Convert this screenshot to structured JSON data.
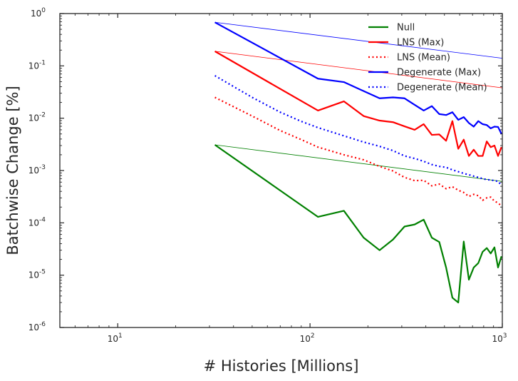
{
  "chart_data": {
    "type": "line",
    "xlabel": "# Histories [Millions]",
    "ylabel": "Batchwise Change [%]",
    "xscale": "log",
    "yscale": "log",
    "xlim": [
      5,
      1000
    ],
    "ylim": [
      1e-06,
      1
    ],
    "xticks": [
      {
        "base": "10",
        "exp": "1",
        "value": 10
      },
      {
        "base": "10",
        "exp": "2",
        "value": 100
      },
      {
        "base": "10",
        "exp": "3",
        "value": 1000
      }
    ],
    "yticks": [
      {
        "base": "10",
        "exp": "-6",
        "value": 1e-06
      },
      {
        "base": "10",
        "exp": "-5",
        "value": 1e-05
      },
      {
        "base": "10",
        "exp": "-4",
        "value": 0.0001
      },
      {
        "base": "10",
        "exp": "-3",
        "value": 0.001
      },
      {
        "base": "10",
        "exp": "-2",
        "value": 0.01
      },
      {
        "base": "10",
        "exp": "-1",
        "value": 0.1
      },
      {
        "base": "10",
        "exp": "0",
        "value": 1
      }
    ],
    "grid": false,
    "legend_position": "top-right",
    "series": [
      {
        "name": "Null",
        "color": "#008000",
        "style": "solid",
        "x": [
          32,
          110,
          150,
          190,
          230,
          270,
          310,
          350,
          390,
          430,
          470,
          510,
          550,
          590,
          630,
          670,
          710,
          750,
          790,
          830,
          870,
          910,
          950,
          990
        ],
        "y": [
          0.0031,
          0.00013,
          0.00017,
          5.2e-05,
          3e-05,
          4.8e-05,
          8.5e-05,
          9.3e-05,
          0.000115,
          5.2e-05,
          4.3e-05,
          1.4e-05,
          3.7e-06,
          3e-06,
          4.4e-05,
          8.2e-06,
          1.4e-05,
          1.7e-05,
          2.8e-05,
          3.3e-05,
          2.6e-05,
          3.4e-05,
          1.4e-05,
          2.3e-05
        ]
      },
      {
        "name": "LNS (Max)",
        "color": "#ff0000",
        "style": "solid",
        "x": [
          32,
          110,
          150,
          190,
          230,
          270,
          310,
          350,
          390,
          430,
          470,
          510,
          550,
          590,
          630,
          670,
          710,
          750,
          790,
          830,
          870,
          910,
          950,
          990
        ],
        "y": [
          0.19,
          0.014,
          0.021,
          0.011,
          0.009,
          0.0084,
          0.007,
          0.006,
          0.0077,
          0.0048,
          0.0049,
          0.0037,
          0.0088,
          0.0026,
          0.0039,
          0.0019,
          0.0025,
          0.0019,
          0.0019,
          0.0036,
          0.0028,
          0.003,
          0.0019,
          0.0028
        ]
      },
      {
        "name": "LNS (Mean)",
        "color": "#ff0000",
        "style": "dotted",
        "x": [
          32,
          50,
          70,
          90,
          110,
          150,
          190,
          230,
          270,
          310,
          350,
          390,
          430,
          470,
          510,
          550,
          590,
          630,
          670,
          710,
          750,
          790,
          830,
          870,
          910,
          950,
          990
        ],
        "y": [
          0.025,
          0.011,
          0.0058,
          0.0039,
          0.0028,
          0.002,
          0.0016,
          0.0012,
          0.00098,
          0.00074,
          0.00064,
          0.00065,
          0.00051,
          0.00055,
          0.00045,
          0.00049,
          0.00042,
          0.00038,
          0.00032,
          0.00035,
          0.00033,
          0.00027,
          0.0003,
          0.00031,
          0.00026,
          0.00024,
          0.00021
        ]
      },
      {
        "name": "Degenerate (Max)",
        "color": "#0000ff",
        "style": "solid",
        "x": [
          32,
          110,
          150,
          190,
          230,
          270,
          310,
          350,
          390,
          430,
          470,
          510,
          550,
          590,
          630,
          670,
          710,
          750,
          790,
          830,
          870,
          910,
          950,
          990
        ],
        "y": [
          0.68,
          0.057,
          0.049,
          0.033,
          0.024,
          0.025,
          0.024,
          0.018,
          0.014,
          0.017,
          0.012,
          0.0115,
          0.013,
          0.0093,
          0.0105,
          0.0081,
          0.0069,
          0.0088,
          0.0077,
          0.0074,
          0.0064,
          0.0069,
          0.0068,
          0.005
        ]
      },
      {
        "name": "Degenerate (Mean)",
        "color": "#0000ff",
        "style": "dotted",
        "x": [
          32,
          50,
          70,
          90,
          110,
          150,
          190,
          230,
          270,
          310,
          350,
          390,
          430,
          470,
          510,
          550,
          590,
          630,
          670,
          710,
          750,
          790,
          830,
          870,
          910,
          950,
          990
        ],
        "y": [
          0.065,
          0.025,
          0.013,
          0.0087,
          0.0066,
          0.0046,
          0.0035,
          0.0029,
          0.0024,
          0.0019,
          0.0017,
          0.0015,
          0.0013,
          0.0012,
          0.00115,
          0.00103,
          0.00095,
          0.00088,
          0.00083,
          0.00078,
          0.00074,
          0.0007,
          0.00067,
          0.00066,
          0.00064,
          0.00062,
          0.00052
        ]
      }
    ],
    "reference_lines": [
      {
        "color": "#008000",
        "x": [
          32,
          1000
        ],
        "y": [
          0.0031,
          0.00062
        ]
      },
      {
        "color": "#ff0000",
        "x": [
          32,
          1000
        ],
        "y": [
          0.19,
          0.038
        ]
      },
      {
        "color": "#0000ff",
        "x": [
          32,
          1000
        ],
        "y": [
          0.68,
          0.14
        ]
      }
    ]
  }
}
